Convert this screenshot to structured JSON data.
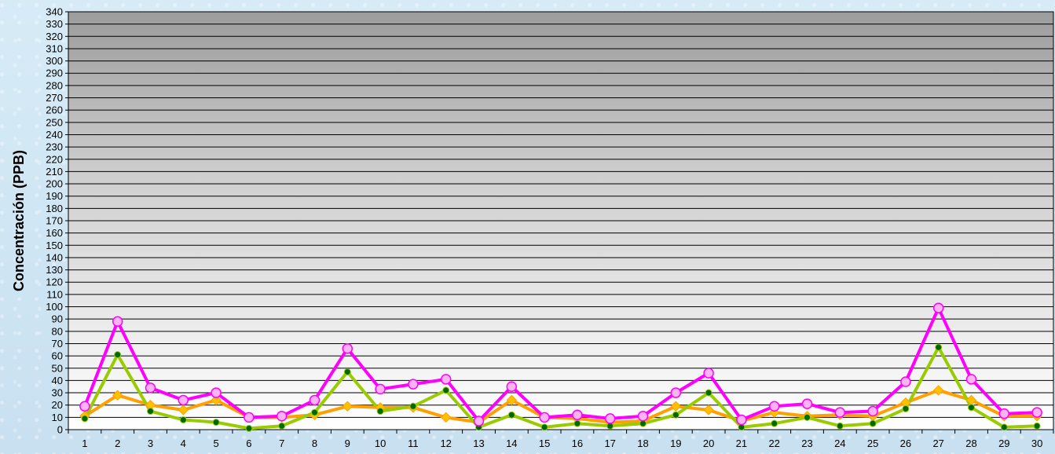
{
  "chart_data": {
    "type": "line",
    "title": "",
    "xlabel": "",
    "ylabel": "Concentración  (PPB)",
    "ylim": [
      0,
      340
    ],
    "ytick_step": 10,
    "grid": "horizontal",
    "x": [
      1,
      2,
      3,
      4,
      5,
      6,
      7,
      8,
      9,
      10,
      11,
      12,
      13,
      14,
      15,
      16,
      17,
      18,
      19,
      20,
      21,
      22,
      23,
      24,
      25,
      26,
      27,
      28,
      29,
      30
    ],
    "series": [
      {
        "color": "#ff00ff",
        "marker": "circle",
        "marker_fill": "#ffb3f2",
        "values": [
          19,
          88,
          34,
          24,
          30,
          10,
          11,
          24,
          66,
          33,
          37,
          41,
          7,
          35,
          10,
          12,
          9,
          11,
          30,
          46,
          8,
          19,
          21,
          14,
          15,
          39,
          99,
          41,
          13,
          14
        ]
      },
      {
        "color": "#ffa000",
        "marker": "diamond",
        "marker_fill": "#ffc000",
        "values": [
          11,
          28,
          20,
          16,
          24,
          10,
          10,
          12,
          19,
          18,
          18,
          10,
          6,
          24,
          10,
          9,
          6,
          7,
          19,
          16,
          7,
          14,
          11,
          12,
          11,
          22,
          32,
          24,
          11,
          11
        ]
      },
      {
        "color": "#99cc00",
        "marker": "dot",
        "marker_fill": "#006600",
        "values": [
          9,
          61,
          15,
          8,
          6,
          1,
          3,
          14,
          47,
          15,
          19,
          32,
          2,
          12,
          2,
          5,
          3,
          5,
          12,
          30,
          2,
          5,
          10,
          3,
          5,
          17,
          67,
          18,
          2,
          3
        ]
      }
    ]
  },
  "style": {
    "plot_top_color": "#9c9c9c",
    "plot_bottom_color": "#ffffff",
    "background_color": "#cfe6f4",
    "grid_color": "#000000"
  }
}
